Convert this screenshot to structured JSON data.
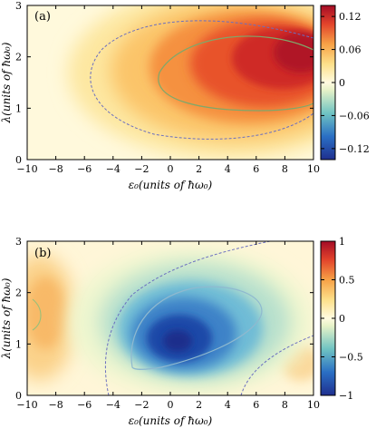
{
  "chart_data": [
    {
      "type": "heatmap",
      "panel_label": "(a)",
      "xlabel": "ε₀(units of ħω₀)",
      "ylabel": "λ(units of ħω₀)",
      "xlim": [
        -10,
        10
      ],
      "ylim": [
        0,
        3
      ],
      "xticks": [
        "−10",
        "−8",
        "−6",
        "−4",
        "−2",
        "0",
        "2",
        "4",
        "6",
        "8",
        "10"
      ],
      "yticks": [
        "0",
        "1",
        "2",
        "3"
      ],
      "colorbar": {
        "min": -0.14,
        "max": 0.14,
        "ticks": [
          "0.12",
          "0.06",
          "0",
          "−0.06",
          "−0.12"
        ],
        "tick_values": [
          0.12,
          0.06,
          0,
          -0.06,
          -0.12
        ]
      },
      "peak": {
        "x": 9.5,
        "y": 2.2,
        "value": 0.12
      },
      "contours": [
        "dashed blue outer (low level)",
        "solid green inner (high level)"
      ]
    },
    {
      "type": "heatmap",
      "panel_label": "(b)",
      "xlabel": "ε₀(units of ħω₀)",
      "ylabel": "λ(units of ħω₀)",
      "xlim": [
        -10,
        10
      ],
      "ylim": [
        0,
        3
      ],
      "xticks": [
        "−10",
        "−8",
        "−6",
        "−4",
        "−2",
        "0",
        "2",
        "4",
        "6",
        "8",
        "10"
      ],
      "yticks": [
        "0",
        "1",
        "2",
        "3"
      ],
      "colorbar": {
        "min": -1,
        "max": 1,
        "ticks": [
          "1",
          "0.5",
          "0",
          "−0.5",
          "−1"
        ],
        "tick_values": [
          1,
          0.5,
          0,
          -0.5,
          -1
        ]
      },
      "minimum": {
        "x": 1.5,
        "y": 0.9,
        "value": -0.9
      },
      "contours": [
        "dashed blue zero-level lines",
        "solid light-blue inner level"
      ]
    }
  ]
}
